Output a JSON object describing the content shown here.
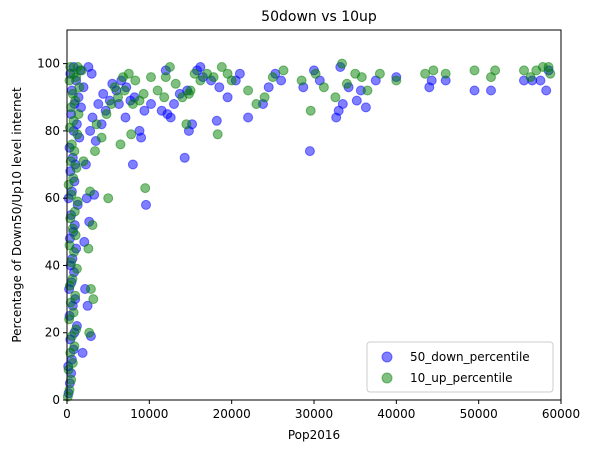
{
  "chart_data": {
    "type": "scatter",
    "title": "50down vs 10up",
    "xlabel": "Pop2016",
    "ylabel": "Percentage of Down50/Up10 level internet",
    "xlim": [
      0,
      60000
    ],
    "ylim": [
      0,
      110
    ],
    "xticks": [
      0,
      10000,
      20000,
      30000,
      40000,
      50000,
      60000
    ],
    "yticks": [
      0,
      20,
      40,
      60,
      80,
      100
    ],
    "grid": false,
    "legend_position": "lower-right",
    "series": [
      {
        "name": "50_down_percentile",
        "color": "#0000ff",
        "points": [
          [
            200,
            2
          ],
          [
            350,
            5
          ],
          [
            500,
            8
          ],
          [
            150,
            10
          ],
          [
            600,
            12
          ],
          [
            800,
            15
          ],
          [
            400,
            18
          ],
          [
            900,
            20
          ],
          [
            1200,
            22
          ],
          [
            300,
            25
          ],
          [
            700,
            28
          ],
          [
            1000,
            30
          ],
          [
            250,
            33
          ],
          [
            550,
            35
          ],
          [
            850,
            38
          ],
          [
            450,
            40
          ],
          [
            650,
            42
          ],
          [
            1100,
            45
          ],
          [
            350,
            48
          ],
          [
            750,
            50
          ],
          [
            950,
            52
          ],
          [
            500,
            55
          ],
          [
            1300,
            58
          ],
          [
            200,
            60
          ],
          [
            600,
            62
          ],
          [
            900,
            65
          ],
          [
            400,
            68
          ],
          [
            1000,
            70
          ],
          [
            700,
            72
          ],
          [
            300,
            75
          ],
          [
            1500,
            78
          ],
          [
            800,
            80
          ],
          [
            1200,
            82
          ],
          [
            500,
            85
          ],
          [
            1700,
            87
          ],
          [
            900,
            88
          ],
          [
            1400,
            90
          ],
          [
            600,
            92
          ],
          [
            2000,
            93
          ],
          [
            1100,
            95
          ],
          [
            400,
            97
          ],
          [
            1600,
            98
          ],
          [
            800,
            99
          ],
          [
            2600,
            99
          ],
          [
            3000,
            97
          ],
          [
            1900,
            14
          ],
          [
            2900,
            19
          ],
          [
            2500,
            28
          ],
          [
            2200,
            33
          ],
          [
            2100,
            47
          ],
          [
            2700,
            53
          ],
          [
            2400,
            60
          ],
          [
            3300,
            61
          ],
          [
            2300,
            70
          ],
          [
            3500,
            77
          ],
          [
            2800,
            80
          ],
          [
            4200,
            82
          ],
          [
            3100,
            84
          ],
          [
            4700,
            86
          ],
          [
            3800,
            88
          ],
          [
            5200,
            89
          ],
          [
            4400,
            91
          ],
          [
            6000,
            92
          ],
          [
            5500,
            94
          ],
          [
            6600,
            95
          ],
          [
            7200,
            93
          ],
          [
            6300,
            88
          ],
          [
            7700,
            89
          ],
          [
            8200,
            90
          ],
          [
            9000,
            78
          ],
          [
            9600,
            58
          ],
          [
            8000,
            70
          ],
          [
            8800,
            80
          ],
          [
            7100,
            84
          ],
          [
            9400,
            86
          ],
          [
            10200,
            88
          ],
          [
            11500,
            86
          ],
          [
            12200,
            85
          ],
          [
            12600,
            84
          ],
          [
            13000,
            88
          ],
          [
            13700,
            91
          ],
          [
            14300,
            72
          ],
          [
            14800,
            80
          ],
          [
            15200,
            82
          ],
          [
            14600,
            92
          ],
          [
            15800,
            98
          ],
          [
            16500,
            96
          ],
          [
            17500,
            95
          ],
          [
            18200,
            83
          ],
          [
            18500,
            93
          ],
          [
            19500,
            90
          ],
          [
            20500,
            95
          ],
          [
            22000,
            84
          ],
          [
            23800,
            88
          ],
          [
            24500,
            93
          ],
          [
            25300,
            97
          ],
          [
            26000,
            95
          ],
          [
            28700,
            93
          ],
          [
            29500,
            74
          ],
          [
            30000,
            98
          ],
          [
            30700,
            95
          ],
          [
            32700,
            84
          ],
          [
            33000,
            86
          ],
          [
            33500,
            88
          ],
          [
            34200,
            93
          ],
          [
            35200,
            89
          ],
          [
            35700,
            92
          ],
          [
            36300,
            87
          ],
          [
            37500,
            95
          ],
          [
            40000,
            96
          ],
          [
            44000,
            93
          ],
          [
            44300,
            95
          ],
          [
            46000,
            95
          ],
          [
            49500,
            92
          ],
          [
            51500,
            92
          ],
          [
            55500,
            95
          ],
          [
            56500,
            95
          ],
          [
            57500,
            95
          ],
          [
            58200,
            92
          ],
          [
            58500,
            98
          ],
          [
            33200,
            99
          ],
          [
            12000,
            98
          ],
          [
            16200,
            99
          ],
          [
            21000,
            97
          ]
        ]
      },
      {
        "name": "10_up_percentile",
        "color": "#008000",
        "points": [
          [
            100,
            1
          ],
          [
            300,
            3
          ],
          [
            500,
            6
          ],
          [
            200,
            9
          ],
          [
            700,
            11
          ],
          [
            400,
            14
          ],
          [
            900,
            16
          ],
          [
            600,
            19
          ],
          [
            1100,
            21
          ],
          [
            250,
            24
          ],
          [
            800,
            26
          ],
          [
            450,
            29
          ],
          [
            1000,
            31
          ],
          [
            350,
            34
          ],
          [
            650,
            36
          ],
          [
            1200,
            39
          ],
          [
            500,
            41
          ],
          [
            850,
            44
          ],
          [
            300,
            46
          ],
          [
            1050,
            49
          ],
          [
            700,
            51
          ],
          [
            400,
            54
          ],
          [
            950,
            56
          ],
          [
            1300,
            59
          ],
          [
            550,
            61
          ],
          [
            200,
            64
          ],
          [
            750,
            66
          ],
          [
            1150,
            69
          ],
          [
            450,
            71
          ],
          [
            900,
            74
          ],
          [
            600,
            76
          ],
          [
            1250,
            79
          ],
          [
            350,
            81
          ],
          [
            800,
            83
          ],
          [
            1400,
            85
          ],
          [
            500,
            87
          ],
          [
            1000,
            89
          ],
          [
            700,
            91
          ],
          [
            1500,
            93
          ],
          [
            300,
            95
          ],
          [
            1100,
            96
          ],
          [
            800,
            97
          ],
          [
            1800,
            98
          ],
          [
            400,
            99
          ],
          [
            1300,
            99
          ],
          [
            2700,
            20
          ],
          [
            3200,
            30
          ],
          [
            2900,
            33
          ],
          [
            2600,
            45
          ],
          [
            3100,
            52
          ],
          [
            2800,
            62
          ],
          [
            2000,
            71
          ],
          [
            5000,
            60
          ],
          [
            3400,
            74
          ],
          [
            4200,
            78
          ],
          [
            3600,
            82
          ],
          [
            4800,
            85
          ],
          [
            5400,
            88
          ],
          [
            6200,
            90
          ],
          [
            5800,
            93
          ],
          [
            6800,
            96
          ],
          [
            7500,
            97
          ],
          [
            7000,
            92
          ],
          [
            8300,
            95
          ],
          [
            8000,
            88
          ],
          [
            8800,
            89
          ],
          [
            6500,
            76
          ],
          [
            7800,
            79
          ],
          [
            9500,
            63
          ],
          [
            9300,
            91
          ],
          [
            10200,
            96
          ],
          [
            11000,
            92
          ],
          [
            11800,
            90
          ],
          [
            12000,
            96
          ],
          [
            12500,
            99
          ],
          [
            13200,
            94
          ],
          [
            14000,
            90
          ],
          [
            14500,
            82
          ],
          [
            15000,
            92
          ],
          [
            15500,
            97
          ],
          [
            16200,
            95
          ],
          [
            17000,
            97
          ],
          [
            17800,
            96
          ],
          [
            18300,
            79
          ],
          [
            18800,
            99
          ],
          [
            19500,
            97
          ],
          [
            20000,
            95
          ],
          [
            22000,
            92
          ],
          [
            24000,
            90
          ],
          [
            25000,
            96
          ],
          [
            26300,
            98
          ],
          [
            28500,
            95
          ],
          [
            29600,
            86
          ],
          [
            30200,
            97
          ],
          [
            31200,
            93
          ],
          [
            32600,
            90
          ],
          [
            33400,
            100
          ],
          [
            34000,
            94
          ],
          [
            35000,
            97
          ],
          [
            35800,
            96
          ],
          [
            36500,
            92
          ],
          [
            38000,
            97
          ],
          [
            40000,
            95
          ],
          [
            43500,
            97
          ],
          [
            44500,
            98
          ],
          [
            46000,
            97
          ],
          [
            49500,
            98
          ],
          [
            51500,
            96
          ],
          [
            52000,
            98
          ],
          [
            55500,
            98
          ],
          [
            56300,
            96
          ],
          [
            57000,
            98
          ],
          [
            57800,
            99
          ],
          [
            58500,
            99
          ],
          [
            58700,
            97
          ],
          [
            14800,
            91
          ],
          [
            23000,
            88
          ]
        ]
      }
    ]
  }
}
